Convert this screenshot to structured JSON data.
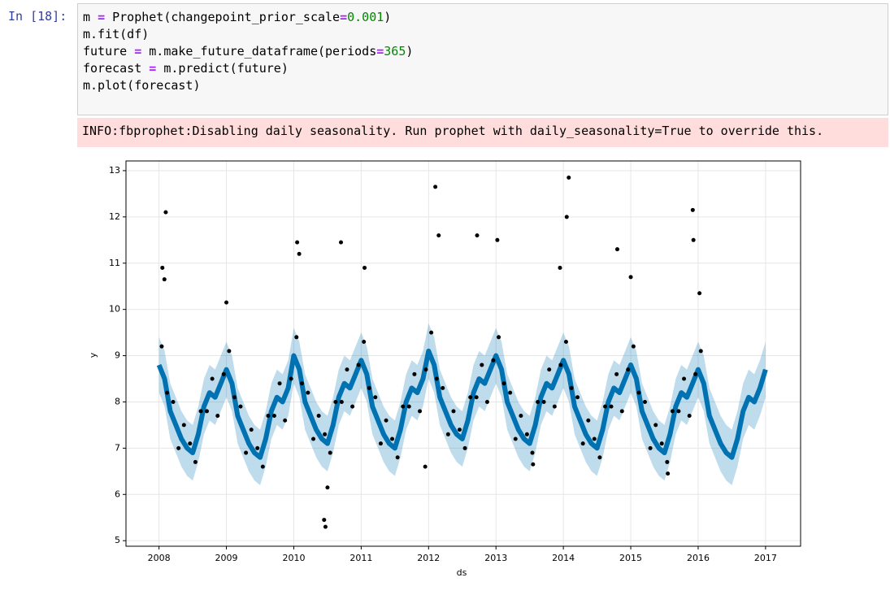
{
  "notebook": {
    "prompt": "In [18]:",
    "code": [
      "m = Prophet(changepoint_prior_scale=0.001)",
      "m.fit(df)",
      "future = m.make_future_dataframe(periods=365)",
      "forecast = m.predict(future)",
      "m.plot(forecast)"
    ],
    "stderr": "INFO:fbprophet:Disabling daily seasonality. Run prophet with daily_seasonality=True to override this."
  },
  "chart_data": {
    "type": "line",
    "xlabel": "ds",
    "ylabel": "y",
    "grid": true,
    "xlim": [
      2007.51,
      2017.52
    ],
    "ylim": [
      4.88,
      13.21
    ],
    "xticks": [
      2008,
      2009,
      2010,
      2011,
      2012,
      2013,
      2014,
      2015,
      2016,
      2017
    ],
    "yticks": [
      5,
      6,
      7,
      8,
      9,
      10,
      11,
      12,
      13
    ],
    "forecast": {
      "color": "#0072B2",
      "x": [
        2008,
        2008.083,
        2008.167,
        2008.25,
        2008.333,
        2008.417,
        2008.5,
        2008.583,
        2008.667,
        2008.75,
        2008.833,
        2008.917,
        2009,
        2009.083,
        2009.167,
        2009.25,
        2009.333,
        2009.417,
        2009.5,
        2009.583,
        2009.667,
        2009.75,
        2009.833,
        2009.917,
        2010,
        2010.083,
        2010.167,
        2010.25,
        2010.333,
        2010.417,
        2010.5,
        2010.583,
        2010.667,
        2010.75,
        2010.833,
        2010.917,
        2011,
        2011.083,
        2011.167,
        2011.25,
        2011.333,
        2011.417,
        2011.5,
        2011.583,
        2011.667,
        2011.75,
        2011.833,
        2011.917,
        2012,
        2012.083,
        2012.167,
        2012.25,
        2012.333,
        2012.417,
        2012.5,
        2012.583,
        2012.667,
        2012.75,
        2012.833,
        2012.917,
        2013,
        2013.083,
        2013.167,
        2013.25,
        2013.333,
        2013.417,
        2013.5,
        2013.583,
        2013.667,
        2013.75,
        2013.833,
        2013.917,
        2014,
        2014.083,
        2014.167,
        2014.25,
        2014.333,
        2014.417,
        2014.5,
        2014.583,
        2014.667,
        2014.75,
        2014.833,
        2014.917,
        2015,
        2015.083,
        2015.167,
        2015.25,
        2015.333,
        2015.417,
        2015.5,
        2015.583,
        2015.667,
        2015.75,
        2015.833,
        2015.917,
        2016,
        2016.083,
        2016.167,
        2016.25,
        2016.333,
        2016.417,
        2016.5,
        2016.583,
        2016.667,
        2016.75,
        2016.833,
        2016.917,
        2017
      ],
      "values": [
        8.8,
        8.5,
        7.8,
        7.5,
        7.2,
        7.0,
        6.9,
        7.3,
        7.9,
        8.2,
        8.1,
        8.4,
        8.7,
        8.4,
        7.7,
        7.4,
        7.1,
        6.9,
        6.8,
        7.2,
        7.8,
        8.1,
        8.0,
        8.3,
        9.0,
        8.7,
        8.0,
        7.7,
        7.4,
        7.2,
        7.1,
        7.5,
        8.1,
        8.4,
        8.3,
        8.6,
        8.9,
        8.6,
        7.9,
        7.6,
        7.3,
        7.1,
        7.0,
        7.4,
        8.0,
        8.3,
        8.2,
        8.5,
        9.1,
        8.8,
        8.1,
        7.8,
        7.5,
        7.3,
        7.2,
        7.6,
        8.2,
        8.5,
        8.4,
        8.7,
        9.0,
        8.7,
        8.0,
        7.7,
        7.4,
        7.2,
        7.1,
        7.5,
        8.1,
        8.4,
        8.3,
        8.6,
        8.9,
        8.6,
        7.9,
        7.6,
        7.3,
        7.1,
        7.0,
        7.4,
        8.0,
        8.3,
        8.2,
        8.5,
        8.8,
        8.5,
        7.8,
        7.5,
        7.2,
        7.0,
        6.9,
        7.3,
        7.9,
        8.2,
        8.1,
        8.4,
        8.7,
        8.4,
        7.7,
        7.4,
        7.1,
        6.9,
        6.8,
        7.2,
        7.8,
        8.1,
        8.0,
        8.3,
        8.7
      ],
      "lower": [
        8.2,
        7.9,
        7.2,
        6.9,
        6.6,
        6.4,
        6.3,
        6.7,
        7.3,
        7.6,
        7.5,
        7.8,
        8.1,
        7.8,
        7.1,
        6.8,
        6.5,
        6.3,
        6.2,
        6.6,
        7.2,
        7.5,
        7.4,
        7.7,
        8.4,
        8.1,
        7.4,
        7.1,
        6.8,
        6.6,
        6.5,
        6.9,
        7.5,
        7.8,
        7.7,
        8.0,
        8.3,
        8.0,
        7.3,
        7.0,
        6.7,
        6.5,
        6.4,
        6.8,
        7.4,
        7.7,
        7.6,
        7.9,
        8.5,
        8.2,
        7.5,
        7.2,
        6.9,
        6.7,
        6.6,
        7.0,
        7.6,
        7.9,
        7.8,
        8.1,
        8.4,
        8.1,
        7.4,
        7.1,
        6.8,
        6.6,
        6.5,
        6.9,
        7.5,
        7.8,
        7.7,
        8.0,
        8.3,
        8.0,
        7.3,
        7.0,
        6.7,
        6.5,
        6.4,
        6.8,
        7.4,
        7.7,
        7.6,
        7.9,
        8.2,
        7.9,
        7.2,
        6.9,
        6.6,
        6.4,
        6.3,
        6.7,
        7.3,
        7.6,
        7.5,
        7.8,
        8.1,
        7.8,
        7.1,
        6.8,
        6.5,
        6.3,
        6.2,
        6.6,
        7.2,
        7.5,
        7.4,
        7.7,
        8.1
      ],
      "upper": [
        9.4,
        9.1,
        8.4,
        8.1,
        7.8,
        7.6,
        7.5,
        7.9,
        8.5,
        8.8,
        8.7,
        9.0,
        9.3,
        9.0,
        8.3,
        8.0,
        7.7,
        7.5,
        7.4,
        7.8,
        8.4,
        8.7,
        8.6,
        8.9,
        9.6,
        9.3,
        8.6,
        8.3,
        8.0,
        7.8,
        7.7,
        8.1,
        8.7,
        9.0,
        8.9,
        9.2,
        9.5,
        9.2,
        8.5,
        8.2,
        7.9,
        7.7,
        7.6,
        8.0,
        8.6,
        8.9,
        8.8,
        9.1,
        9.7,
        9.4,
        8.7,
        8.4,
        8.1,
        7.9,
        7.8,
        8.2,
        8.8,
        9.1,
        9.0,
        9.3,
        9.6,
        9.3,
        8.6,
        8.3,
        8.0,
        7.8,
        7.7,
        8.1,
        8.7,
        9.0,
        8.9,
        9.2,
        9.5,
        9.2,
        8.5,
        8.2,
        7.9,
        7.7,
        7.6,
        8.0,
        8.6,
        8.9,
        8.8,
        9.1,
        9.4,
        9.1,
        8.4,
        8.1,
        7.8,
        7.6,
        7.5,
        7.9,
        8.5,
        8.8,
        8.7,
        9.0,
        9.3,
        9.0,
        8.3,
        8.0,
        7.7,
        7.5,
        7.4,
        7.8,
        8.4,
        8.7,
        8.6,
        8.9,
        9.3
      ]
    },
    "scatter": {
      "color": "#000000",
      "x": [
        2008.04,
        2008.12,
        2008.21,
        2008.29,
        2008.37,
        2008.46,
        2008.54,
        2008.62,
        2008.71,
        2008.79,
        2008.87,
        2008.96,
        2009.04,
        2009.12,
        2009.21,
        2009.29,
        2009.37,
        2009.46,
        2009.54,
        2009.62,
        2009.71,
        2009.79,
        2009.87,
        2009.96,
        2010.04,
        2010.12,
        2010.21,
        2010.29,
        2010.37,
        2010.46,
        2010.54,
        2010.62,
        2010.71,
        2010.79,
        2010.87,
        2010.96,
        2011.04,
        2011.12,
        2011.21,
        2011.29,
        2011.37,
        2011.46,
        2011.54,
        2011.62,
        2011.71,
        2011.79,
        2011.87,
        2011.96,
        2012.04,
        2012.12,
        2012.21,
        2012.29,
        2012.37,
        2012.46,
        2012.54,
        2012.62,
        2012.71,
        2012.79,
        2012.87,
        2012.96,
        2013.04,
        2013.12,
        2013.21,
        2013.29,
        2013.37,
        2013.46,
        2013.54,
        2013.62,
        2013.71,
        2013.79,
        2013.87,
        2013.96,
        2014.04,
        2014.12,
        2014.21,
        2014.29,
        2014.37,
        2014.46,
        2014.54,
        2014.62,
        2014.71,
        2014.79,
        2014.87,
        2014.96,
        2015.04,
        2015.12,
        2015.21,
        2015.29,
        2015.37,
        2015.46,
        2015.54,
        2015.62,
        2015.71,
        2015.79,
        2015.87,
        2015.96,
        2016.04,
        2008.1,
        2008.05,
        2008.08,
        2009.0,
        2010.05,
        2010.08,
        2010.45,
        2010.47,
        2010.5,
        2010.7,
        2011.05,
        2011.95,
        2012.1,
        2012.15,
        2012.72,
        2013.02,
        2013.55,
        2013.95,
        2014.05,
        2014.08,
        2014.8,
        2015.0,
        2015.55,
        2015.92,
        2015.93,
        2016.02
      ],
      "values": [
        9.2,
        8.2,
        8.0,
        7.0,
        7.5,
        7.1,
        6.7,
        7.8,
        7.8,
        8.5,
        7.7,
        8.6,
        9.1,
        8.1,
        7.9,
        6.9,
        7.4,
        7.0,
        6.6,
        7.7,
        7.7,
        8.4,
        7.6,
        8.5,
        9.4,
        8.4,
        8.2,
        7.2,
        7.7,
        7.3,
        6.9,
        8.0,
        8.0,
        8.7,
        7.9,
        8.8,
        9.3,
        8.3,
        8.1,
        7.1,
        7.6,
        7.2,
        6.8,
        7.9,
        7.9,
        8.6,
        7.8,
        8.7,
        9.5,
        8.5,
        8.3,
        7.3,
        7.8,
        7.4,
        7.0,
        8.1,
        8.1,
        8.8,
        8.0,
        8.9,
        9.4,
        8.4,
        8.2,
        7.2,
        7.7,
        7.3,
        6.9,
        8.0,
        8.0,
        8.7,
        7.9,
        8.8,
        9.3,
        8.3,
        8.1,
        7.1,
        7.6,
        7.2,
        6.8,
        7.9,
        7.9,
        8.6,
        7.8,
        8.7,
        9.2,
        8.2,
        8.0,
        7.0,
        7.5,
        7.1,
        6.7,
        7.8,
        7.8,
        8.5,
        7.7,
        8.6,
        9.1,
        12.1,
        10.9,
        10.65,
        10.15,
        11.45,
        11.2,
        5.45,
        5.3,
        6.15,
        11.45,
        10.9,
        6.6,
        12.65,
        11.6,
        11.6,
        11.5,
        6.65,
        10.9,
        12.0,
        12.85,
        11.3,
        10.7,
        6.45,
        12.15,
        11.5,
        10.35
      ]
    }
  }
}
